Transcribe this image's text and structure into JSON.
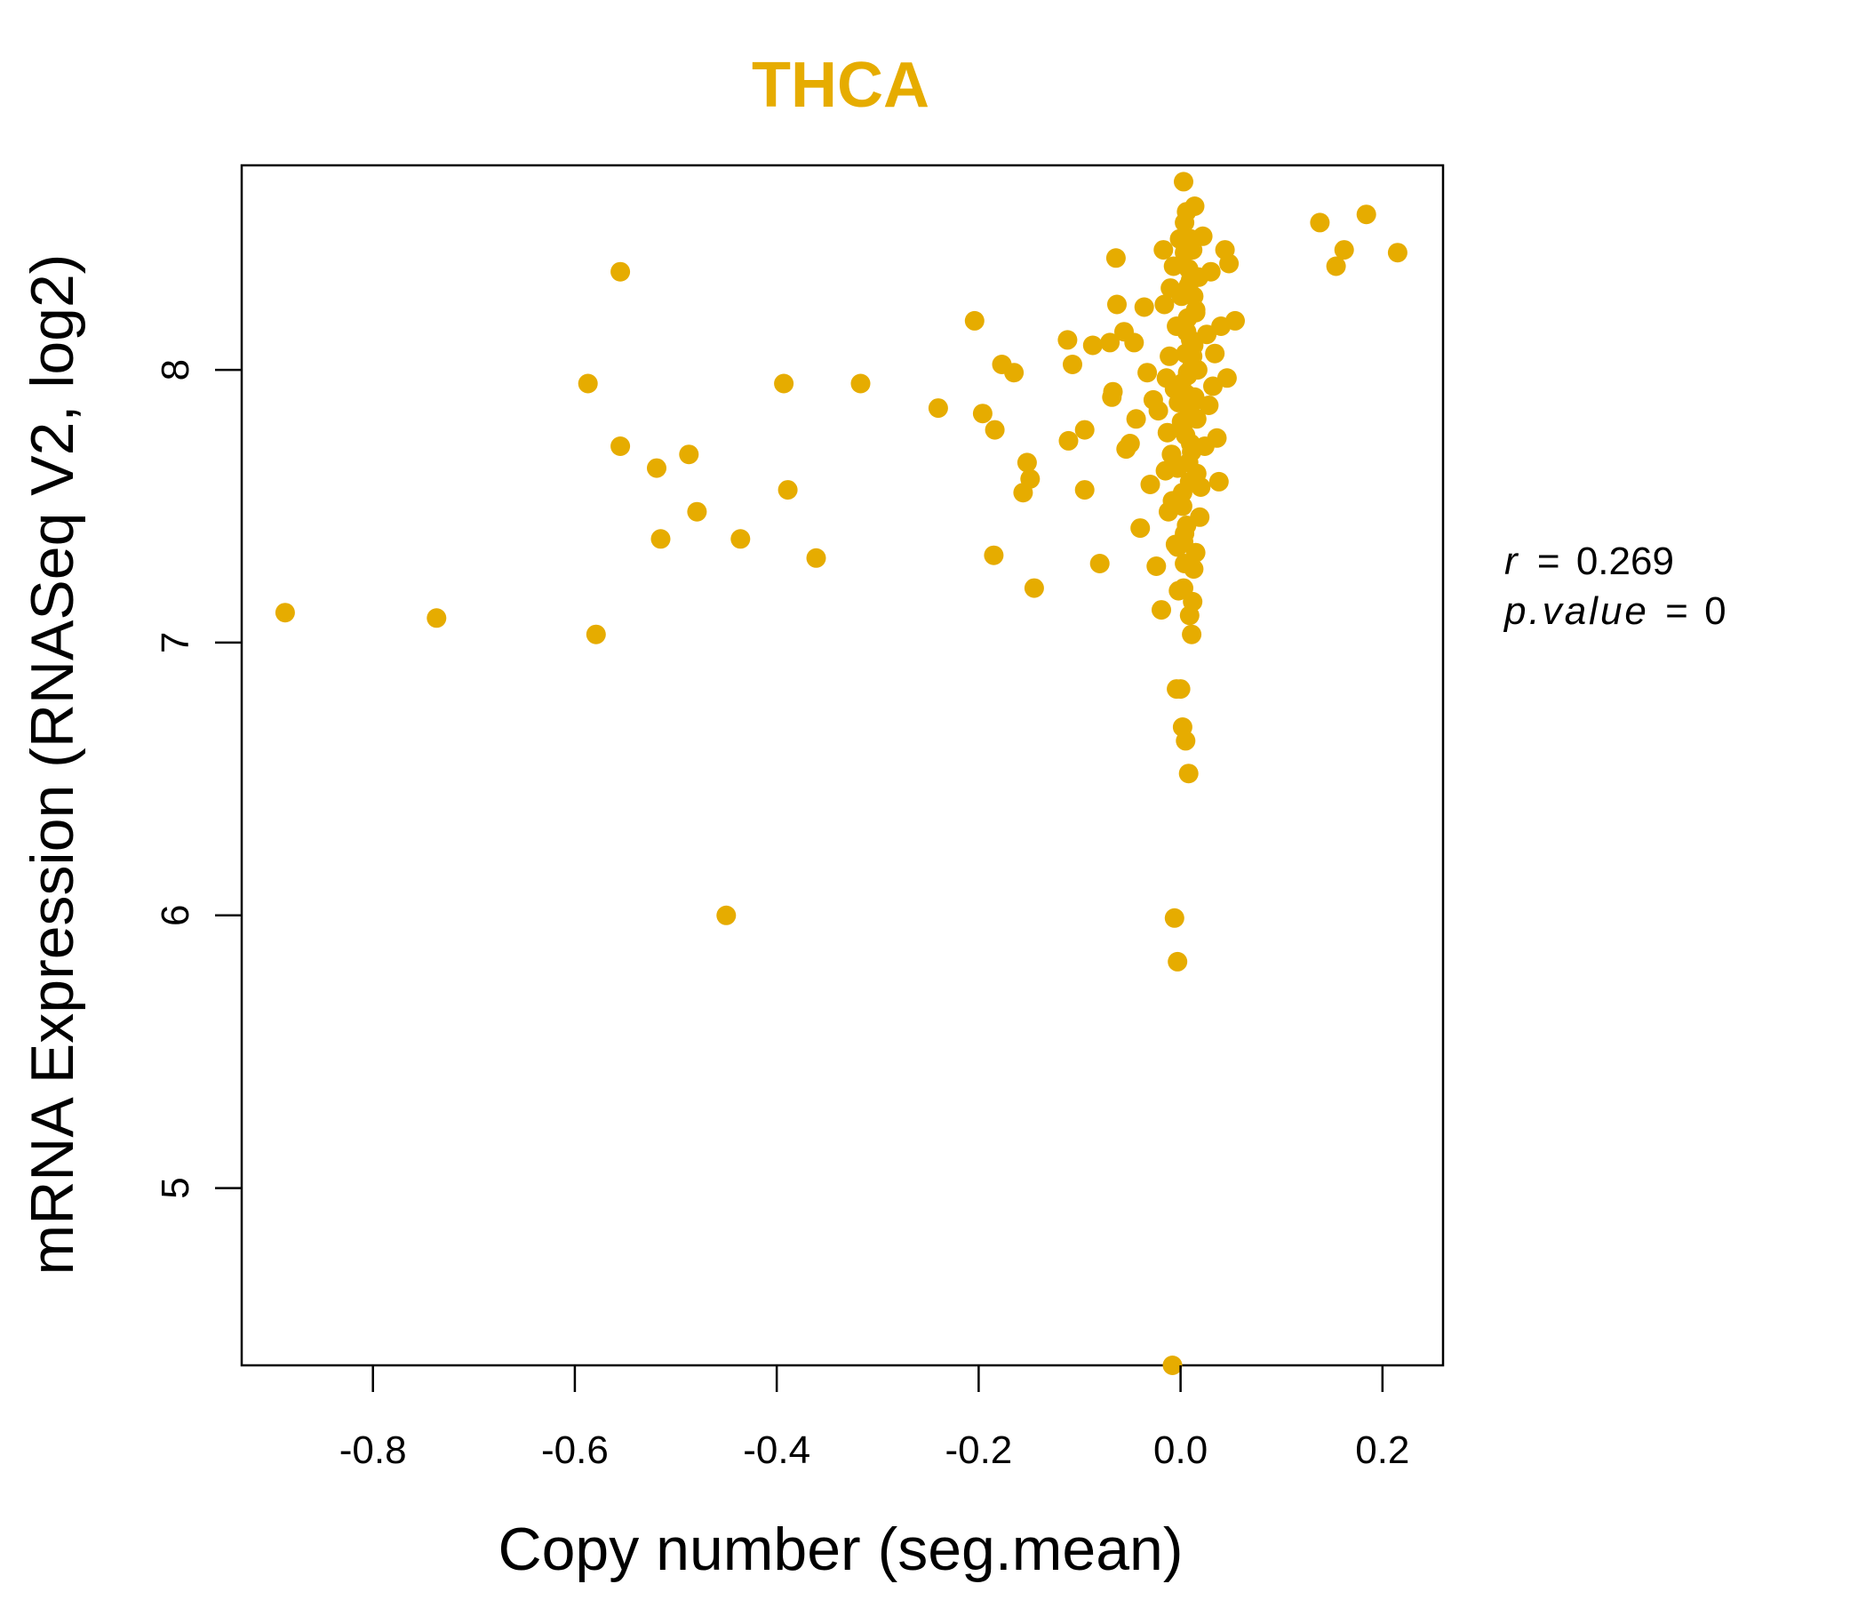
{
  "chart_data": {
    "type": "scatter",
    "title": "THCA",
    "xlabel": "Copy number (seg.mean)",
    "ylabel": "mRNA Expression (RNASeq V2, log2)",
    "xlim": [
      -0.93,
      0.26
    ],
    "ylim": [
      4.35,
      8.75
    ],
    "x_ticks": [
      -0.8,
      -0.6,
      -0.4,
      -0.2,
      0.0,
      0.2
    ],
    "x_tick_labels": [
      "-0.8",
      "-0.6",
      "-0.4",
      "-0.2",
      "0.0",
      "0.2"
    ],
    "y_ticks": [
      5,
      6,
      7,
      8
    ],
    "y_tick_labels": [
      "5",
      "6",
      "7",
      "8"
    ],
    "color": "#E6AC00",
    "annotation": {
      "r_label": "r",
      "r_value": "0.269",
      "p_label": "p.value",
      "p_value": "0",
      "eq": "="
    },
    "x": [
      -0.887,
      -0.737,
      -0.579,
      -0.587,
      -0.555,
      -0.555,
      -0.519,
      -0.515,
      -0.487,
      -0.479,
      -0.45,
      -0.436,
      -0.393,
      -0.389,
      -0.361,
      -0.317,
      -0.24,
      -0.204,
      -0.196,
      -0.185,
      -0.184,
      -0.177,
      -0.165,
      -0.156,
      -0.152,
      -0.149,
      -0.145,
      -0.112,
      -0.111,
      -0.107,
      -0.095,
      -0.095,
      -0.087,
      -0.08,
      -0.07,
      -0.068,
      -0.067,
      -0.064,
      -0.063,
      -0.056,
      -0.054,
      -0.05,
      -0.046,
      -0.044,
      -0.04,
      -0.036,
      -0.033,
      -0.03,
      -0.027,
      -0.024,
      -0.022,
      -0.019,
      -0.017,
      -0.016,
      -0.015,
      -0.014,
      -0.013,
      -0.012,
      -0.011,
      -0.01,
      -0.009,
      -0.008,
      -0.007,
      -0.006,
      -0.005,
      -0.004,
      -0.003,
      -0.002,
      -0.001,
      0.0,
      0.001,
      0.002,
      0.003,
      0.004,
      0.005,
      0.006,
      0.007,
      0.008,
      0.009,
      0.01,
      0.011,
      0.012,
      0.013,
      0.014,
      0.015,
      0.016,
      0.017,
      0.018,
      0.019,
      0.02,
      0.022,
      0.024,
      0.026,
      0.028,
      0.03,
      0.032,
      0.034,
      0.036,
      0.038,
      0.04,
      0.044,
      0.046,
      0.048,
      0.054,
      0.002,
      0.005,
      0.008,
      0.012,
      0.015,
      0.003,
      0.006,
      0.01,
      0.013,
      0.004,
      0.009,
      0.011,
      0.001,
      0.007,
      0.014,
      -0.002,
      0.003,
      0.008,
      0.012,
      0.006,
      0.01,
      0.002,
      0.005,
      0.015,
      0.009,
      0.011,
      0.004,
      0.007,
      0.013,
      0.016,
      0.002,
      0.006,
      0.01,
      0.008,
      0.004,
      -0.003,
      0.001,
      0.012,
      -0.006,
      -0.003,
      -0.008,
      -0.004,
      0.138,
      0.154,
      0.162,
      0.184,
      0.215
    ],
    "y": [
      7.11,
      7.09,
      7.03,
      7.95,
      8.36,
      7.72,
      7.64,
      7.38,
      7.69,
      7.48,
      6.0,
      7.38,
      7.95,
      7.56,
      7.31,
      7.95,
      7.86,
      8.18,
      7.84,
      7.32,
      7.78,
      8.02,
      7.99,
      7.55,
      7.66,
      7.6,
      7.2,
      8.11,
      7.74,
      8.02,
      7.78,
      7.56,
      8.09,
      7.29,
      8.1,
      7.9,
      7.92,
      8.41,
      8.24,
      8.14,
      7.71,
      7.73,
      8.1,
      7.82,
      7.42,
      8.23,
      7.99,
      7.58,
      7.89,
      7.28,
      7.85,
      7.12,
      8.44,
      8.24,
      7.63,
      7.97,
      7.77,
      7.48,
      8.05,
      8.3,
      7.69,
      7.52,
      8.38,
      7.93,
      7.36,
      8.16,
      7.64,
      7.88,
      8.48,
      6.83,
      8.27,
      7.79,
      7.2,
      8.54,
      8.06,
      7.43,
      7.98,
      8.37,
      7.59,
      8.11,
      7.7,
      8.44,
      7.27,
      7.9,
      8.21,
      7.82,
      8.0,
      8.34,
      7.46,
      7.57,
      8.49,
      7.72,
      8.13,
      7.87,
      8.36,
      7.94,
      8.06,
      7.75,
      7.59,
      8.16,
      8.44,
      7.97,
      8.39,
      8.18,
      6.69,
      6.64,
      6.52,
      7.15,
      7.33,
      8.69,
      8.58,
      8.48,
      8.27,
      7.4,
      7.1,
      7.03,
      7.81,
      8.19,
      8.6,
      7.19,
      7.37,
      7.66,
      8.05,
      7.91,
      8.33,
      7.55,
      7.76,
      8.22,
      7.84,
      8.01,
      7.29,
      7.99,
      8.09,
      7.62,
      7.5,
      8.14,
      7.73,
      8.31,
      8.43,
      7.35,
      7.95,
      7.88,
      5.99,
      5.83,
      4.35,
      6.83,
      8.54,
      8.38,
      8.44,
      8.57,
      8.43
    ]
  }
}
